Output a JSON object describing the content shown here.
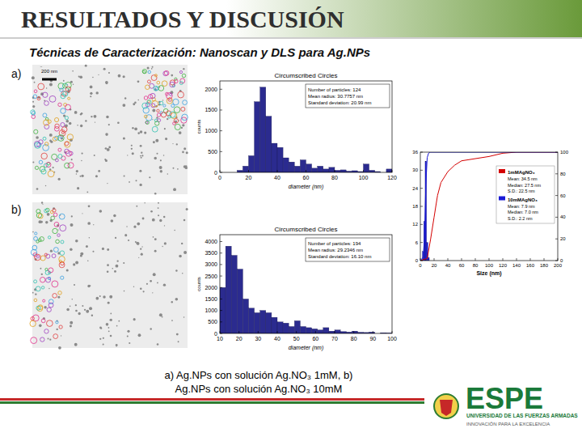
{
  "header": {
    "title": "RESULTADOS Y DISCUSIÓN",
    "subtitle": "Técnicas de Caracterización: Nanoscan y DLS para Ag.NPs"
  },
  "panels": [
    "a)",
    "b)"
  ],
  "scale_bar": "200 nm",
  "chart_data": [
    {
      "type": "histogram",
      "title": "Circumscribed Circles",
      "x_label": "diameter (nm)",
      "y_label": "counts",
      "bins": [
        12,
        16,
        20,
        24,
        28,
        32,
        36,
        40,
        44,
        48,
        52,
        56,
        60,
        64,
        68,
        72,
        76,
        80,
        84,
        88,
        92,
        96,
        100,
        104,
        108,
        112,
        116,
        120
      ],
      "values": [
        50,
        150,
        400,
        1700,
        2050,
        1350,
        700,
        600,
        350,
        250,
        150,
        300,
        200,
        100,
        150,
        80,
        120,
        50,
        60,
        30,
        40,
        20,
        200,
        50,
        20,
        0,
        80
      ],
      "color": "#2b2b8f",
      "xlim": [
        0,
        120
      ],
      "xticks": [
        0,
        20,
        40,
        60,
        80,
        100,
        120
      ],
      "ylim": [
        0,
        2200
      ],
      "yticks": [
        0,
        500,
        1000,
        1500,
        2000
      ],
      "annotations": [
        "Number of particles: 124",
        "Mean radius: 30.7757 nm",
        "Standard deviation: 20.99 nm"
      ]
    },
    {
      "type": "histogram",
      "title": "Circumscribed Circles",
      "x_label": "diameter (nm)",
      "y_label": "counts",
      "bins": [
        10,
        13,
        16,
        19,
        22,
        25,
        28,
        31,
        34,
        37,
        40,
        43,
        46,
        49,
        52,
        55,
        58,
        61,
        64,
        67,
        70,
        73,
        76,
        79,
        82,
        85,
        88,
        91,
        94,
        97,
        100
      ],
      "values": [
        2000,
        3800,
        3400,
        2800,
        1500,
        1100,
        900,
        1000,
        900,
        700,
        500,
        450,
        300,
        550,
        300,
        250,
        200,
        150,
        250,
        100,
        150,
        80,
        60,
        100,
        50,
        40,
        60,
        0,
        30,
        20
      ],
      "color": "#2b2b8f",
      "xlim": [
        10,
        100
      ],
      "xticks": [
        10,
        20,
        30,
        40,
        50,
        60,
        70,
        80,
        90,
        100
      ],
      "ylim": [
        0,
        4300
      ],
      "yticks": [
        0,
        500,
        1000,
        1500,
        2000,
        2500,
        3000,
        3500,
        4000
      ],
      "annotations": [
        "Number of particles: 194",
        "Mean radius: 29.2346 nm",
        "Standard deviation: 16.10 nm"
      ]
    },
    {
      "type": "combo",
      "x_label": "Size (nm)",
      "legend": "right",
      "xlim": [
        0,
        200
      ],
      "xticks": [
        0,
        20,
        40,
        60,
        80,
        100,
        120,
        140,
        160,
        180,
        200
      ],
      "ylim": [
        0,
        36
      ],
      "yticks": [
        0,
        6,
        12,
        18,
        24,
        30,
        36
      ],
      "y2lim": [
        0,
        100
      ],
      "y2ticks": [
        0,
        20,
        40,
        60,
        80,
        100
      ],
      "series": [
        {
          "type": "bar",
          "color": "#1a1ad6",
          "bins": [
            3,
            5,
            7,
            9,
            11,
            13
          ],
          "values": [
            3,
            13,
            33,
            6,
            1
          ]
        },
        {
          "name": "1mMAgNO₃",
          "type": "line",
          "axis": "y2",
          "color": "#d40000",
          "x": [
            0,
            10,
            15,
            20,
            25,
            30,
            40,
            50,
            60,
            80,
            100,
            120,
            140,
            160,
            200
          ],
          "values": [
            0,
            2,
            20,
            40,
            60,
            72,
            82,
            88,
            92,
            94,
            96,
            99,
            100,
            100,
            100
          ],
          "stats": [
            "Mean: 34.5 nm",
            "Median: 27.5 nm",
            "S.D.: 22.5 nm"
          ]
        },
        {
          "name": "10mMAgNO₃",
          "type": "line",
          "axis": "y2",
          "color": "#1a1ad6",
          "x": [
            0,
            4,
            6,
            8,
            10,
            12,
            14,
            200
          ],
          "values": [
            0,
            3,
            20,
            70,
            95,
            99,
            100,
            100
          ],
          "stats": [
            "Mean: 7.9 nm",
            "Median: 7.0 nm",
            "S.D.: 2.2 nm"
          ]
        }
      ]
    }
  ],
  "caption": [
    "a)  Ag.NPs con solución Ag.NO₃ 1mM, b)",
    "Ag.NPs con solución Ag.NO₃ 10mM"
  ],
  "footer": {
    "logo": "ESPE",
    "university": "UNIVERSIDAD DE LAS FUERZAS ARMADAS",
    "motto": "INNOVACIÓN PARA LA EXCELENCIA"
  }
}
